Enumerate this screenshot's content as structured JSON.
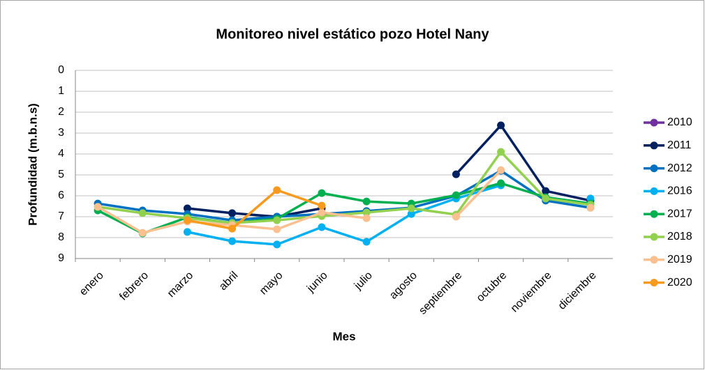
{
  "chart_data": {
    "type": "line",
    "title": "Monitoreo nivel estático pozo Hotel Nany",
    "x_label": "Mes",
    "y_label": "Profundidad (m.b.n.s)",
    "categories": [
      "enero",
      "febrero",
      "marzo",
      "abril",
      "mayo",
      "junio",
      "julio",
      "agosto",
      "septiembre",
      "octubre",
      "noviembre",
      "diciembre"
    ],
    "ylim": [
      0,
      9
    ],
    "yticks": [
      0,
      1,
      2,
      3,
      4,
      5,
      6,
      7,
      8,
      9
    ],
    "y_inverted": true,
    "grid": true,
    "legend": "right",
    "series": [
      {
        "name": "2010",
        "color": "#7030a0",
        "values": [
          null,
          null,
          null,
          null,
          null,
          null,
          null,
          null,
          null,
          null,
          null,
          null
        ]
      },
      {
        "name": "2011",
        "color": "#002060",
        "values": [
          null,
          null,
          6.6,
          6.83,
          7.0,
          6.6,
          null,
          null,
          4.97,
          2.63,
          5.77,
          6.23
        ]
      },
      {
        "name": "2012",
        "color": "#0070c0",
        "values": [
          6.37,
          6.7,
          6.87,
          7.17,
          7.0,
          6.87,
          6.73,
          6.57,
          6.0,
          4.8,
          6.23,
          6.57
        ]
      },
      {
        "name": "2016",
        "color": "#00b0f0",
        "values": [
          null,
          null,
          7.73,
          8.17,
          8.33,
          7.5,
          8.2,
          6.87,
          6.13,
          5.5,
          null,
          6.13
        ]
      },
      {
        "name": "2017",
        "color": "#00b050",
        "values": [
          6.7,
          7.8,
          7.03,
          7.3,
          7.1,
          5.87,
          6.27,
          6.37,
          5.97,
          5.4,
          6.07,
          6.37
        ]
      },
      {
        "name": "2018",
        "color": "#92d050",
        "values": [
          6.53,
          6.83,
          7.07,
          7.3,
          7.17,
          6.97,
          6.8,
          6.6,
          6.9,
          3.9,
          6.13,
          6.43
        ]
      },
      {
        "name": "2019",
        "color": "#fac090",
        "values": [
          6.53,
          7.77,
          7.23,
          7.4,
          7.6,
          6.8,
          7.07,
          null,
          7.0,
          4.77,
          null,
          6.57
        ]
      },
      {
        "name": "2020",
        "color": "#f79a1e",
        "values": [
          null,
          null,
          7.17,
          7.57,
          5.73,
          6.47,
          null,
          null,
          null,
          null,
          null,
          null
        ]
      }
    ]
  }
}
